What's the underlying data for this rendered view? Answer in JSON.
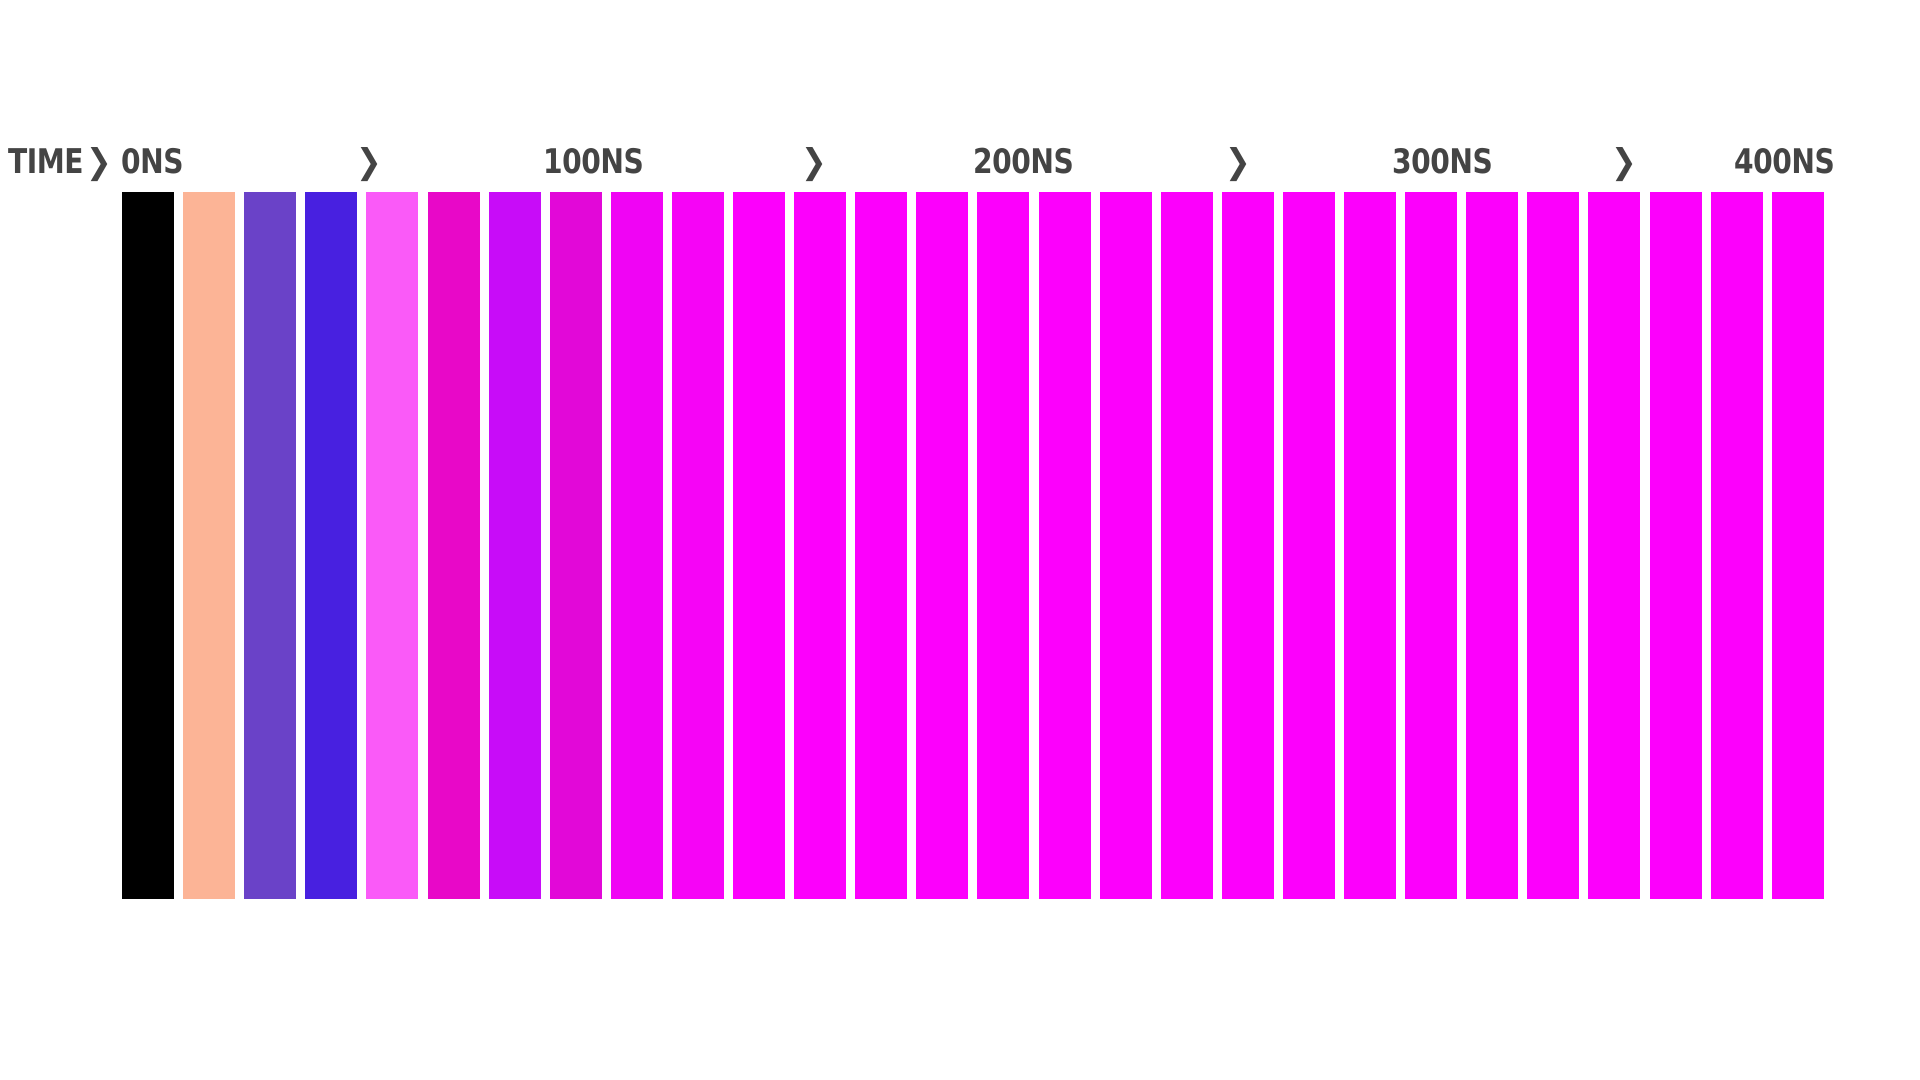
{
  "axis": {
    "title": "TIME",
    "arrow_icon": "chevron-right-icon",
    "tick_labels": [
      "0NS",
      "100NS",
      "200NS",
      "300NS",
      "400NS"
    ]
  },
  "timeline": {
    "bar_colors": [
      "#000000",
      "#fcb496",
      "#6a42c8",
      "#4820e0",
      "#fa5af8",
      "#e808c8",
      "#c80cf8",
      "#e208d8",
      "#f004f4",
      "#f604f6",
      "#fc00fc",
      "#fc00fc",
      "#fc00fc",
      "#fc00fc",
      "#fc00fc",
      "#fc00fc",
      "#fc00fc",
      "#fc00fc",
      "#fc00fc",
      "#fc00fc",
      "#fc00fc",
      "#fc00fc",
      "#fc00fc",
      "#fc00fc",
      "#fc00fc",
      "#fc00fc",
      "#fc00fc",
      "#fc00fc"
    ]
  }
}
